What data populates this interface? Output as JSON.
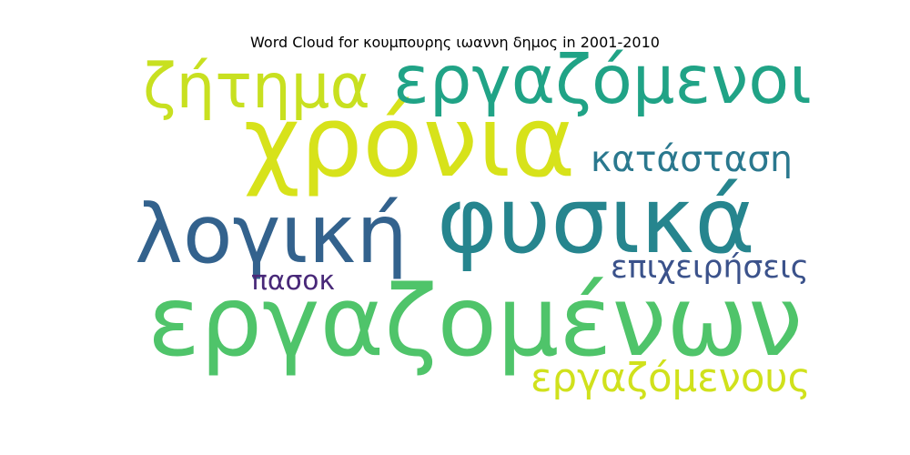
{
  "chart_data": {
    "type": "wordcloud",
    "title": "Word Cloud for κουμπουρης ιωαννη δημος in 2001-2010",
    "words": [
      {
        "text": "εργαζομένων",
        "weight": 1.0,
        "color": "#4fc46a"
      },
      {
        "text": "χρόνια",
        "weight": 0.92,
        "color": "#d7e21a"
      },
      {
        "text": "φυσικά",
        "weight": 0.9,
        "color": "#26858e"
      },
      {
        "text": "λογική",
        "weight": 0.77,
        "color": "#33628d"
      },
      {
        "text": "εργαζόμενοι",
        "weight": 0.68,
        "color": "#20a386"
      },
      {
        "text": "ζήτημα",
        "weight": 0.67,
        "color": "#c8e020"
      },
      {
        "text": "εργαζόμενους",
        "weight": 0.45,
        "color": "#d0e11c"
      },
      {
        "text": "κατάσταση",
        "weight": 0.42,
        "color": "#2a788e"
      },
      {
        "text": "επιχειρήσεις",
        "weight": 0.33,
        "color": "#3b528b"
      },
      {
        "text": "πασοκ",
        "weight": 0.3,
        "color": "#482878"
      }
    ]
  }
}
